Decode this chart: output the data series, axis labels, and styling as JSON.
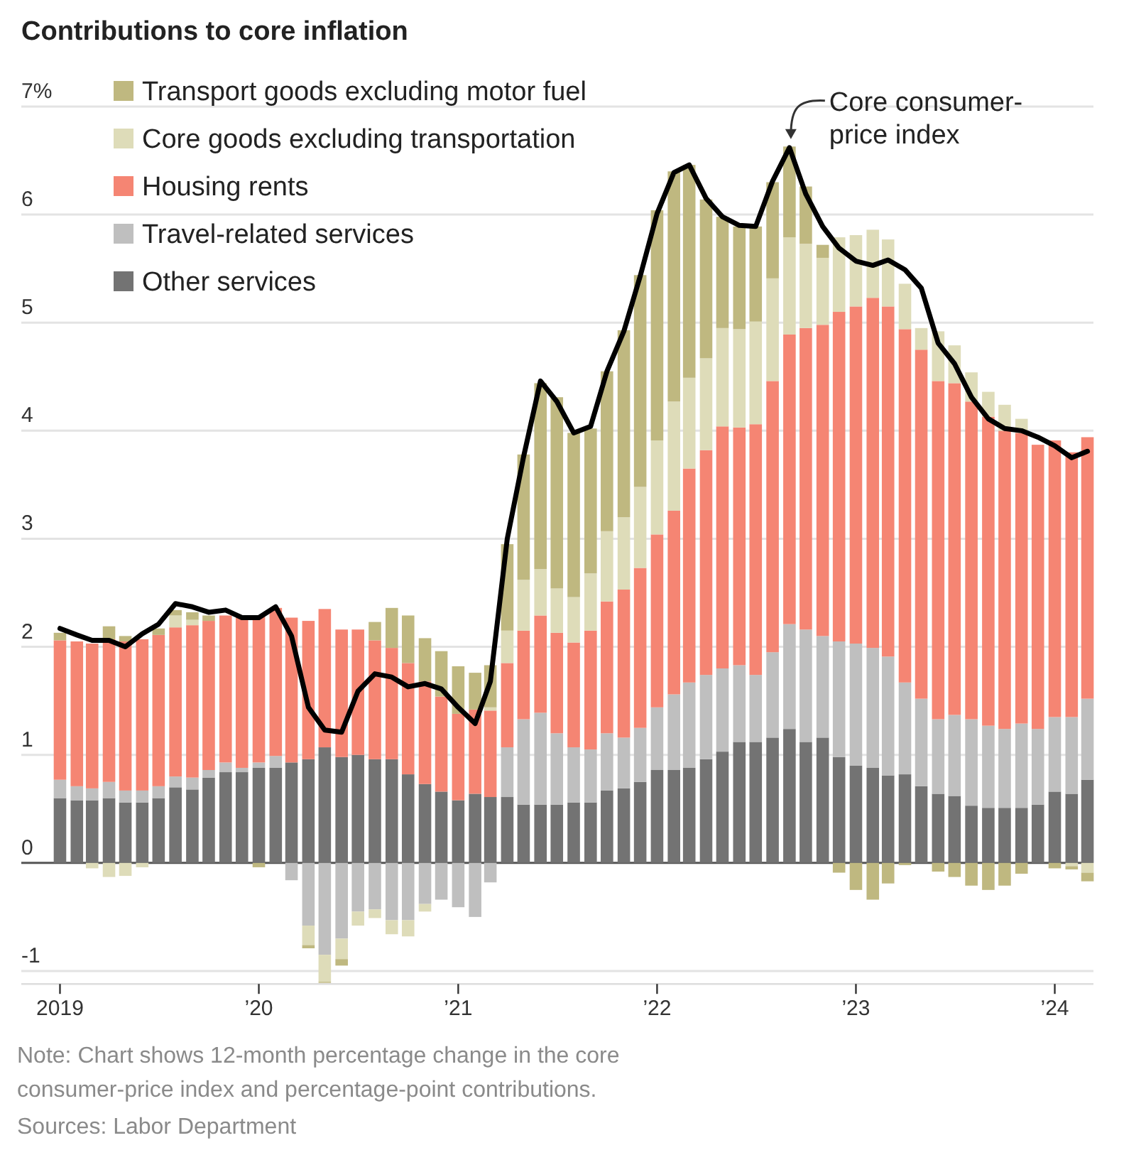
{
  "chart_data": {
    "type": "bar",
    "stacked": true,
    "title": "Contributions to core inflation",
    "x": [
      "2019-01",
      "2019-02",
      "2019-03",
      "2019-04",
      "2019-05",
      "2019-06",
      "2019-07",
      "2019-08",
      "2019-09",
      "2019-10",
      "2019-11",
      "2019-12",
      "2020-01",
      "2020-02",
      "2020-03",
      "2020-04",
      "2020-05",
      "2020-06",
      "2020-07",
      "2020-08",
      "2020-09",
      "2020-10",
      "2020-11",
      "2020-12",
      "2021-01",
      "2021-02",
      "2021-03",
      "2021-04",
      "2021-05",
      "2021-06",
      "2021-07",
      "2021-08",
      "2021-09",
      "2021-10",
      "2021-11",
      "2021-12",
      "2022-01",
      "2022-02",
      "2022-03",
      "2022-04",
      "2022-05",
      "2022-06",
      "2022-07",
      "2022-08",
      "2022-09",
      "2022-10",
      "2022-11",
      "2022-12",
      "2023-01",
      "2023-02",
      "2023-03",
      "2023-04",
      "2023-05",
      "2023-06",
      "2023-07",
      "2023-08",
      "2023-09",
      "2023-10",
      "2023-11",
      "2023-12",
      "2024-01",
      "2024-02",
      "2024-03"
    ],
    "series": [
      {
        "name": "Other services",
        "color": "#737373",
        "values": [
          0.6,
          0.58,
          0.58,
          0.6,
          0.56,
          0.56,
          0.6,
          0.7,
          0.68,
          0.79,
          0.84,
          0.84,
          0.88,
          0.88,
          0.93,
          0.96,
          1.07,
          0.98,
          1.0,
          0.96,
          0.96,
          0.82,
          0.73,
          0.66,
          0.58,
          0.64,
          0.61,
          0.61,
          0.54,
          0.54,
          0.54,
          0.56,
          0.56,
          0.67,
          0.69,
          0.75,
          0.86,
          0.86,
          0.88,
          0.96,
          1.03,
          1.12,
          1.12,
          1.16,
          1.24,
          1.12,
          1.16,
          0.98,
          0.9,
          0.88,
          0.81,
          0.82,
          0.71,
          0.64,
          0.62,
          0.53,
          0.51,
          0.51,
          0.51,
          0.54,
          0.66,
          0.64,
          0.77
        ]
      },
      {
        "name": "Travel-related services",
        "color": "#bfbfbf",
        "values": [
          0.17,
          0.13,
          0.11,
          0.15,
          0.11,
          0.11,
          0.11,
          0.1,
          0.11,
          0.07,
          0.09,
          0.04,
          0.05,
          0.11,
          -0.16,
          -0.58,
          -0.85,
          -0.7,
          -0.45,
          -0.43,
          -0.53,
          -0.53,
          -0.38,
          -0.34,
          -0.41,
          -0.5,
          -0.18,
          0.46,
          0.79,
          0.85,
          0.66,
          0.51,
          0.49,
          0.53,
          0.47,
          0.5,
          0.58,
          0.7,
          0.79,
          0.78,
          0.77,
          0.71,
          0.62,
          0.79,
          0.97,
          1.04,
          0.94,
          1.07,
          1.13,
          1.11,
          1.1,
          0.85,
          0.81,
          0.69,
          0.75,
          0.8,
          0.76,
          0.73,
          0.78,
          0.7,
          0.69,
          0.71,
          0.75
        ]
      },
      {
        "name": "Housing rents",
        "color": "#f58573",
        "values": [
          1.29,
          1.34,
          1.34,
          1.32,
          1.38,
          1.4,
          1.4,
          1.38,
          1.41,
          1.38,
          1.36,
          1.39,
          1.36,
          1.37,
          1.34,
          1.28,
          1.28,
          1.18,
          1.16,
          1.1,
          1.03,
          1.03,
          0.95,
          0.88,
          0.8,
          0.78,
          0.8,
          0.78,
          0.82,
          0.9,
          0.93,
          0.97,
          1.1,
          1.22,
          1.37,
          1.48,
          1.6,
          1.7,
          1.98,
          2.08,
          2.24,
          2.2,
          2.32,
          2.51,
          2.68,
          2.79,
          2.88,
          3.05,
          3.12,
          3.24,
          3.24,
          3.27,
          3.23,
          3.13,
          3.07,
          2.94,
          2.86,
          2.76,
          2.69,
          2.63,
          2.56,
          2.45,
          2.42
        ]
      },
      {
        "name": "Core goods excluding transportation",
        "color": "#dedcb9",
        "values": [
          0,
          null,
          -0.05,
          -0.13,
          -0.12,
          -0.04,
          null,
          0.11,
          0.05,
          0,
          0,
          0,
          0,
          0,
          null,
          -0.18,
          -0.25,
          -0.19,
          -0.13,
          -0.08,
          -0.13,
          -0.15,
          -0.07,
          0,
          0,
          null,
          0.03,
          0.3,
          0.47,
          0.43,
          0.41,
          0.42,
          0.53,
          0.65,
          0.67,
          0.75,
          0.87,
          1.01,
          0.84,
          0.85,
          0.91,
          0.91,
          0.95,
          0.95,
          0.9,
          0.78,
          0.62,
          0.69,
          0.66,
          0.63,
          0.62,
          0.42,
          0.2,
          0.46,
          0.35,
          0.27,
          0.23,
          0.24,
          0.13,
          0,
          0,
          -0.03,
          -0.09
        ]
      },
      {
        "name": "Transport goods excluding motor fuel",
        "color": "#bfb880",
        "values": [
          0.07,
          0,
          null,
          0.12,
          0.05,
          null,
          0.06,
          0.05,
          0.07,
          0.05,
          0,
          0,
          -0.04,
          0,
          0,
          -0.03,
          -0.01,
          -0.06,
          0,
          0.17,
          0.37,
          0.44,
          0.4,
          0.42,
          0.44,
          0.34,
          0.39,
          0.8,
          1.16,
          1.72,
          1.77,
          1.52,
          1.34,
          1.48,
          1.73,
          1.96,
          2.13,
          2.13,
          1.97,
          1.47,
          1.03,
          0.95,
          0.88,
          0.89,
          0.84,
          0.53,
          0.12,
          -0.09,
          -0.25,
          -0.34,
          -0.19,
          -0.02,
          0,
          -0.08,
          -0.13,
          -0.21,
          -0.25,
          -0.21,
          -0.1,
          0,
          -0.05,
          -0.03,
          -0.08
        ]
      },
      {
        "name": "Core consumer-price index",
        "type": "line",
        "color": "#000000",
        "values": [
          2.17,
          2.11,
          2.06,
          2.06,
          2.0,
          2.12,
          2.21,
          2.4,
          2.37,
          2.32,
          2.34,
          2.27,
          2.27,
          2.37,
          2.1,
          1.44,
          1.23,
          1.21,
          1.59,
          1.75,
          1.72,
          1.63,
          1.66,
          1.61,
          1.44,
          1.29,
          1.68,
          3.0,
          3.76,
          4.46,
          4.27,
          3.98,
          4.04,
          4.55,
          4.92,
          5.43,
          6.01,
          6.39,
          6.46,
          6.15,
          5.98,
          5.9,
          5.89,
          6.31,
          6.62,
          6.19,
          5.89,
          5.69,
          5.57,
          5.53,
          5.58,
          5.49,
          5.32,
          4.81,
          4.62,
          4.31,
          4.11,
          4.02,
          4.0,
          3.94,
          3.86,
          3.75,
          3.81
        ]
      }
    ],
    "xlim": [
      "2018-10-22",
      "2024-03-12"
    ],
    "xticks": [
      {
        "value": "2019-01",
        "label": "2019"
      },
      {
        "value": "2020-01",
        "label": "’20"
      },
      {
        "value": "2021-01",
        "label": "’21"
      },
      {
        "value": "2022-01",
        "label": "’22"
      },
      {
        "value": "2023-01",
        "label": "’23"
      },
      {
        "value": "2024-01",
        "label": "’24"
      }
    ],
    "ylim": [
      -1.12,
      7
    ],
    "yticks": [
      -1,
      0,
      1,
      2,
      3,
      4,
      5,
      6,
      {
        "value": 7,
        "label": "7%"
      }
    ],
    "grid": "y",
    "legend": "top left",
    "annotations": [
      "Note: Chart shows 12-month percentage change in the core consumer-price index and percentage-point contributions.",
      "Sources: Labor Department"
    ]
  }
}
